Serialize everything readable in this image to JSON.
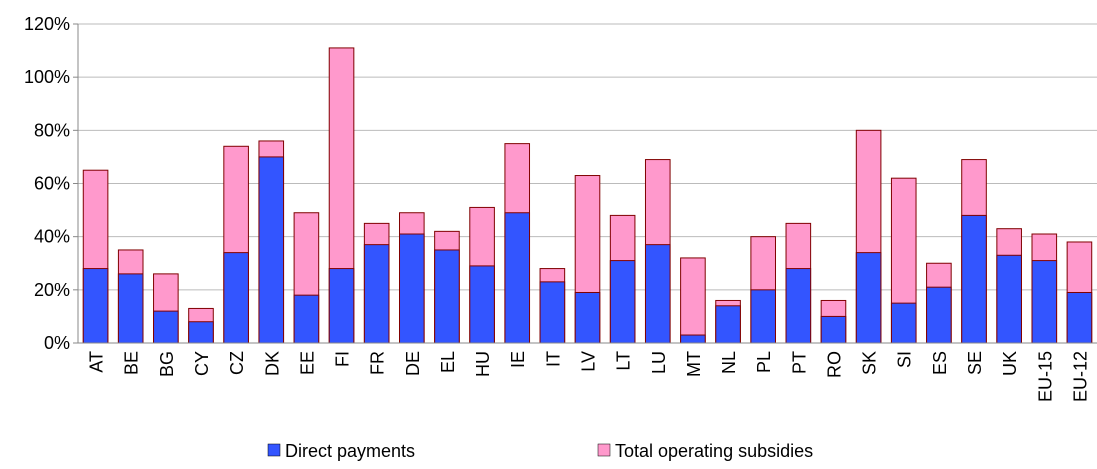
{
  "chart_data": {
    "type": "bar",
    "overlap": true,
    "categories": [
      "AT",
      "BE",
      "BG",
      "CY",
      "CZ",
      "DK",
      "EE",
      "FI",
      "FR",
      "DE",
      "EL",
      "HU",
      "IE",
      "IT",
      "LV",
      "LT",
      "LU",
      "MT",
      "NL",
      "PL",
      "PT",
      "RO",
      "SK",
      "SI",
      "ES",
      "SE",
      "UK",
      "EU-15",
      "EU-12"
    ],
    "series": [
      {
        "name": "Total operating subsidies",
        "color": "#ff99cc",
        "values": [
          65,
          35,
          26,
          13,
          74,
          76,
          49,
          111,
          45,
          49,
          42,
          51,
          75,
          28,
          63,
          48,
          69,
          32,
          16,
          40,
          45,
          16,
          80,
          62,
          30,
          69,
          43,
          41,
          38
        ]
      },
      {
        "name": "Direct payments",
        "color": "#3355ff",
        "values": [
          28,
          26,
          12,
          8,
          34,
          70,
          18,
          28,
          37,
          41,
          35,
          29,
          49,
          23,
          19,
          31,
          37,
          3,
          14,
          20,
          28,
          10,
          34,
          15,
          21,
          48,
          33,
          31,
          19
        ]
      }
    ],
    "legend_order": [
      1,
      0
    ],
    "ylim": [
      0,
      120
    ],
    "yticks": [
      {
        "value": 0,
        "label": "0%"
      },
      {
        "value": 20,
        "label": "20%"
      },
      {
        "value": 40,
        "label": "40%"
      },
      {
        "value": 60,
        "label": "60%"
      },
      {
        "value": 80,
        "label": "80%"
      },
      {
        "value": 100,
        "label": "100%"
      },
      {
        "value": 120,
        "label": "120%"
      }
    ],
    "grid": true
  }
}
